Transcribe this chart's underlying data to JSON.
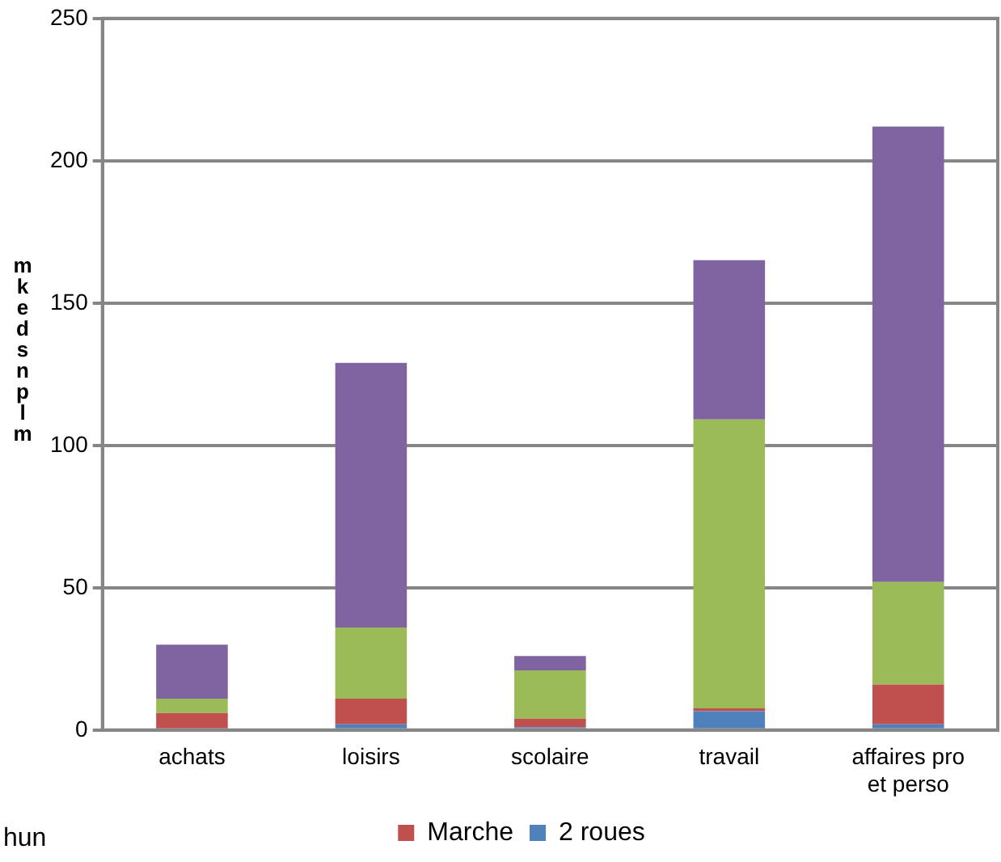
{
  "chart_data": {
    "type": "bar",
    "stacked": true,
    "ylabel": "mkedsnplm",
    "categories": [
      "achats",
      "loisirs",
      "scolaire",
      "travail",
      "affaires pro et perso"
    ],
    "series": [
      {
        "name": "2 roues",
        "color": "#4f81bd",
        "values": [
          0,
          2,
          1,
          6.6,
          2
        ]
      },
      {
        "name": "Marche",
        "color": "#c0504d",
        "values": [
          6,
          9,
          3,
          1,
          14
        ]
      },
      {
        "color": "#9bbb59",
        "values": [
          5,
          25,
          17,
          101.5,
          36
        ]
      },
      {
        "color": "#8064a2",
        "values": [
          19,
          93,
          5,
          56,
          160
        ]
      }
    ],
    "ylim": [
      0,
      250
    ],
    "yticks": [
      0,
      50,
      100,
      150,
      200,
      250
    ],
    "grid": "y",
    "legend": "bottom",
    "annotations": [
      "hun"
    ]
  }
}
